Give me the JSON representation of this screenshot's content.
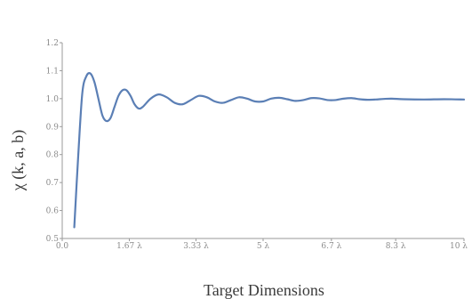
{
  "chart_data": {
    "type": "line",
    "xlabel": "Target Dimensions",
    "ylabel": "χ (k, a, b)",
    "ylim": [
      0.5,
      1.2
    ],
    "xlim": [
      0,
      10
    ],
    "grid": false,
    "y_ticks": [
      "0.5",
      "0.6",
      "0.7",
      "0.8",
      "0.9",
      "1.0",
      "1.1",
      "1.2"
    ],
    "x_ticks": [
      {
        "value": 0,
        "label": "0.0"
      },
      {
        "value": 1.67,
        "label": "1.67 λ"
      },
      {
        "value": 3.33,
        "label": "3.33 λ"
      },
      {
        "value": 5,
        "label": "5 λ"
      },
      {
        "value": 6.7,
        "label": "6.7 λ"
      },
      {
        "value": 8.3,
        "label": "8.3 λ"
      },
      {
        "value": 10,
        "label": "10 λ"
      }
    ],
    "line_color": "#5b7fb5",
    "series": [
      {
        "x": [
          0.3,
          0.4,
          0.5,
          0.6,
          0.7,
          0.8,
          0.9,
          1.0,
          1.1,
          1.2,
          1.3,
          1.4,
          1.5,
          1.6,
          1.7,
          1.8,
          1.9,
          2.0,
          2.2,
          2.4,
          2.6,
          2.8,
          3.0,
          3.2,
          3.4,
          3.6,
          3.8,
          4.0,
          4.2,
          4.4,
          4.6,
          4.8,
          5.0,
          5.2,
          5.4,
          5.6,
          5.8,
          6.0,
          6.2,
          6.4,
          6.6,
          6.8,
          7.0,
          7.2,
          7.4,
          7.6,
          7.8,
          8.0,
          8.2,
          8.5,
          9.0,
          9.5,
          10.0
        ],
        "y": [
          0.54,
          0.8,
          1.02,
          1.08,
          1.09,
          1.06,
          1.0,
          0.94,
          0.92,
          0.93,
          0.97,
          1.01,
          1.03,
          1.03,
          1.01,
          0.98,
          0.965,
          0.97,
          1.0,
          1.015,
          1.005,
          0.985,
          0.98,
          0.995,
          1.01,
          1.005,
          0.99,
          0.985,
          0.995,
          1.005,
          1.0,
          0.99,
          0.99,
          1.0,
          1.003,
          0.998,
          0.992,
          0.995,
          1.002,
          1.001,
          0.995,
          0.995,
          1.0,
          1.002,
          0.998,
          0.996,
          0.997,
          0.999,
          1.0,
          0.998,
          0.997,
          0.998,
          0.997
        ]
      }
    ]
  }
}
